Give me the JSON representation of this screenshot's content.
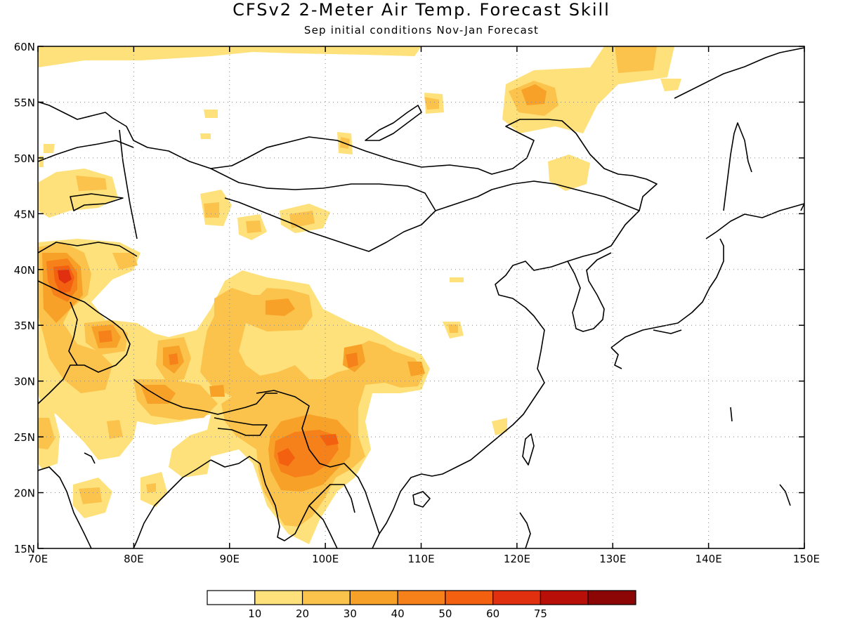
{
  "title": "CFSv2 2-Meter Air Temp. Forecast Skill",
  "subtitle": "Sep initial conditions   Nov-Jan Forecast",
  "map": {
    "lon_range": [
      70,
      150
    ],
    "lat_range": [
      15,
      60
    ],
    "lat_ticks": [
      "60N",
      "55N",
      "50N",
      "45N",
      "40N",
      "35N",
      "30N",
      "25N",
      "20N",
      "15N"
    ],
    "lon_ticks": [
      "70E",
      "80E",
      "90E",
      "100E",
      "110E",
      "120E",
      "130E",
      "140E",
      "150E"
    ],
    "grid": "dotted"
  },
  "legend": {
    "labels": [
      "10",
      "20",
      "30",
      "40",
      "50",
      "60",
      "75"
    ],
    "colors": [
      "#ffffff",
      "#fee17a",
      "#fbc24c",
      "#f8a128",
      "#f6801a",
      "#f3600f",
      "#e03010",
      "#b81008",
      "#8c0606"
    ]
  }
}
